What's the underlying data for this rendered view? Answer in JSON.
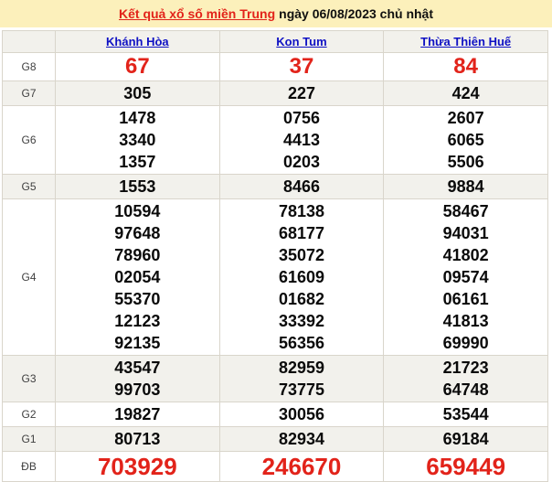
{
  "header": {
    "title_link": "Kết quả xổ số miền Trung",
    "date_text": "ngày 06/08/2023 chủ nhật"
  },
  "table": {
    "provinces": [
      "Khánh Hòa",
      "Kon Tum",
      "Thừa Thiên Huế"
    ],
    "rows": [
      {
        "label": "G8",
        "highlight": true,
        "big": false,
        "cells": [
          [
            "67"
          ],
          [
            "37"
          ],
          [
            "84"
          ]
        ]
      },
      {
        "label": "G7",
        "highlight": false,
        "big": false,
        "cells": [
          [
            "305"
          ],
          [
            "227"
          ],
          [
            "424"
          ]
        ]
      },
      {
        "label": "G6",
        "highlight": false,
        "big": false,
        "cells": [
          [
            "1478",
            "3340",
            "1357"
          ],
          [
            "0756",
            "4413",
            "0203"
          ],
          [
            "2607",
            "6065",
            "5506"
          ]
        ]
      },
      {
        "label": "G5",
        "highlight": false,
        "big": false,
        "cells": [
          [
            "1553"
          ],
          [
            "8466"
          ],
          [
            "9884"
          ]
        ]
      },
      {
        "label": "G4",
        "highlight": false,
        "big": false,
        "cells": [
          [
            "10594",
            "97648",
            "78960",
            "02054",
            "55370",
            "12123",
            "92135"
          ],
          [
            "78138",
            "68177",
            "35072",
            "61609",
            "01682",
            "33392",
            "56356"
          ],
          [
            "58467",
            "94031",
            "41802",
            "09574",
            "06161",
            "41813",
            "69990"
          ]
        ]
      },
      {
        "label": "G3",
        "highlight": false,
        "big": false,
        "cells": [
          [
            "43547",
            "99703"
          ],
          [
            "82959",
            "73775"
          ],
          [
            "21723",
            "64748"
          ]
        ]
      },
      {
        "label": "G2",
        "highlight": false,
        "big": false,
        "cells": [
          [
            "19827"
          ],
          [
            "30056"
          ],
          [
            "53544"
          ]
        ]
      },
      {
        "label": "G1",
        "highlight": false,
        "big": false,
        "cells": [
          [
            "80713"
          ],
          [
            "82934"
          ],
          [
            "69184"
          ]
        ]
      },
      {
        "label": "ĐB",
        "highlight": true,
        "big": true,
        "cells": [
          [
            "703929"
          ],
          [
            "246670"
          ],
          [
            "659449"
          ]
        ]
      }
    ]
  },
  "colors": {
    "accent-red": "#e2231a",
    "link-blue": "#0f11c4",
    "banner-bg": "#fcf0bb",
    "stripe-bg": "#f2f1ec",
    "border-color": "#d9d5cb"
  }
}
